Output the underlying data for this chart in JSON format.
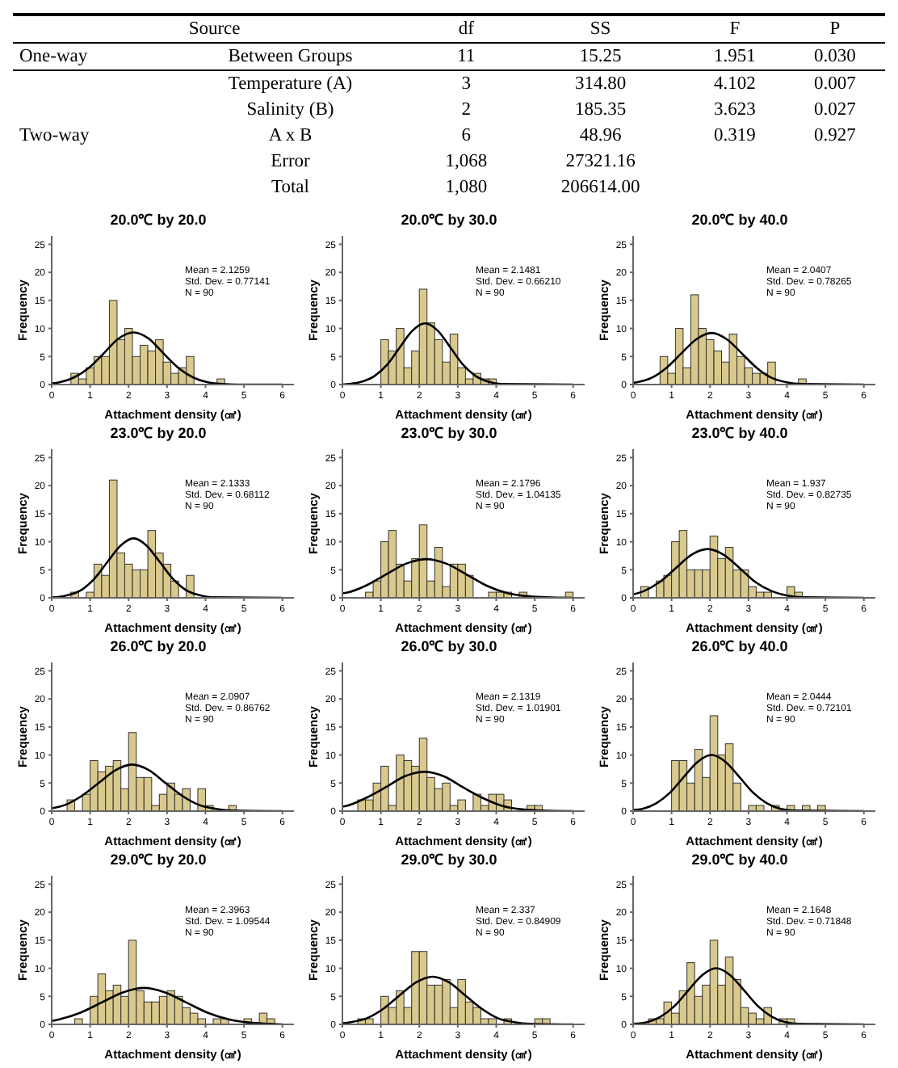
{
  "chart_data": [
    {
      "type": "other",
      "categories": [
        "Source",
        "df",
        "SS",
        "F",
        "P"
      ],
      "cell_labels": [
        [
          "One-way",
          "Between Groups",
          "11",
          "15.25",
          "1.951",
          "0.030"
        ],
        [
          null,
          "Temperature (A)",
          "3",
          "314.80",
          "4.102",
          "0.007"
        ],
        [
          null,
          "Salinity (B)",
          "2",
          "185.35",
          "3.623",
          "0.027"
        ],
        [
          "Two-way",
          "A x B",
          "6",
          "48.96",
          "0.319",
          "0.927"
        ],
        [
          null,
          "Error",
          "1,068",
          "27321.16",
          null,
          null
        ],
        [
          null,
          "Total",
          "1,080",
          "206614.00",
          null,
          null
        ]
      ]
    },
    {
      "type": "histogram",
      "title": "20.0℃ by 20.0",
      "xlabel": "Attachment density (㎠)",
      "ylabel": "Frequency",
      "xlim": [
        0,
        6.3
      ],
      "xticks": [
        0,
        1,
        2,
        3,
        4,
        5,
        6
      ],
      "ylim": [
        0,
        26.5
      ],
      "yticks": [
        0,
        5,
        10,
        15,
        20,
        25
      ],
      "annotations": [
        "Mean = 2.1259",
        "Std. Dev. = 0.77141",
        "N = 90"
      ],
      "series": [
        {
          "type": "histogram",
          "color": "#d9c98c",
          "bins": [
            0.5,
            0.7,
            0.9,
            1.1,
            1.3,
            1.5,
            1.7,
            1.9,
            2.1,
            2.3,
            2.5,
            2.7,
            2.9,
            3.1,
            3.3,
            3.5,
            3.7,
            3.9,
            4.1,
            4.3,
            4.5
          ],
          "values": [
            2,
            1,
            3,
            5,
            5,
            15,
            8,
            10,
            5,
            7,
            6,
            8,
            4,
            2,
            3,
            5,
            0,
            0,
            0,
            1
          ]
        },
        {
          "type": "line",
          "color": "#000000",
          "x": [
            0,
            0.2,
            0.59,
            0.97,
            1.36,
            1.74,
            2.13,
            2.52,
            2.9,
            3.29,
            3.67,
            4.06,
            4.44,
            4.83,
            6
          ],
          "values": [
            0.2,
            0.4,
            1.3,
            3,
            5.6,
            8.2,
            9.3,
            8.2,
            5.6,
            3,
            1.3,
            0.4,
            0.1,
            0,
            0
          ]
        }
      ]
    },
    {
      "type": "histogram",
      "title": "20.0℃ by 30.0",
      "xlabel": "Attachment density (㎠)",
      "ylabel": "Frequency",
      "xlim": [
        0,
        6.3
      ],
      "xticks": [
        0,
        1,
        2,
        3,
        4,
        5,
        6
      ],
      "ylim": [
        0,
        26.5
      ],
      "yticks": [
        0,
        5,
        10,
        15,
        20,
        25
      ],
      "annotations": [
        "Mean = 2.1481",
        "Std. Dev. = 0.66210",
        "N = 90"
      ],
      "series": [
        {
          "type": "histogram",
          "color": "#d9c98c",
          "bins": [
            1.0,
            1.2,
            1.4,
            1.6,
            1.8,
            2.0,
            2.2,
            2.4,
            2.6,
            2.8,
            3.0,
            3.2,
            3.4,
            3.6,
            3.8,
            4.0
          ],
          "values": [
            8,
            6,
            10,
            3,
            6,
            17,
            11,
            8,
            4,
            9,
            3,
            1,
            2,
            1,
            1
          ]
        },
        {
          "type": "line",
          "color": "#000000",
          "x": [
            0,
            0.17,
            0.5,
            0.83,
            1.16,
            1.49,
            1.82,
            2.15,
            2.48,
            2.81,
            3.14,
            3.47,
            3.8,
            4.13,
            6
          ],
          "values": [
            0,
            0.1,
            0.5,
            1.5,
            3.5,
            6.6,
            9.6,
            10.9,
            9.6,
            6.6,
            3.5,
            1.5,
            0.5,
            0.1,
            0
          ]
        }
      ]
    },
    {
      "type": "histogram",
      "title": "20.0℃ by 40.0",
      "xlabel": "Attachment density (㎠)",
      "ylabel": "Frequency",
      "xlim": [
        0,
        6.3
      ],
      "xticks": [
        0,
        1,
        2,
        3,
        4,
        5,
        6
      ],
      "ylim": [
        0,
        26.5
      ],
      "yticks": [
        0,
        5,
        10,
        15,
        20,
        25
      ],
      "annotations": [
        "Mean = 2.0407",
        "Std. Dev. = 0.78265",
        "N = 90"
      ],
      "series": [
        {
          "type": "histogram",
          "color": "#d9c98c",
          "bins": [
            0.7,
            0.9,
            1.1,
            1.3,
            1.5,
            1.7,
            1.9,
            2.1,
            2.3,
            2.5,
            2.7,
            2.9,
            3.1,
            3.3,
            3.5,
            3.7,
            3.9,
            4.1,
            4.3,
            4.5
          ],
          "values": [
            5,
            2,
            10,
            3,
            16,
            10,
            8,
            6,
            4,
            9,
            5,
            3,
            2,
            2,
            4,
            0,
            0,
            0,
            1
          ]
        },
        {
          "type": "line",
          "color": "#000000",
          "x": [
            0,
            0.09,
            0.48,
            0.87,
            1.26,
            1.65,
            2.04,
            2.43,
            2.82,
            3.21,
            3.6,
            3.99,
            4.38,
            6
          ],
          "values": [
            0.3,
            0.4,
            1.2,
            3,
            5.6,
            8.1,
            9.2,
            8.1,
            5.6,
            3,
            1.2,
            0.4,
            0.1,
            0
          ]
        }
      ]
    },
    {
      "type": "histogram",
      "title": "23.0℃ by 20.0",
      "xlabel": "Attachment density (㎠)",
      "ylabel": "Frequency",
      "xlim": [
        0,
        6.3
      ],
      "xticks": [
        0,
        1,
        2,
        3,
        4,
        5,
        6
      ],
      "ylim": [
        0,
        26.5
      ],
      "yticks": [
        0,
        5,
        10,
        15,
        20,
        25
      ],
      "annotations": [
        "Mean = 2.1333",
        "Std. Dev. = 0.68112",
        "N = 90"
      ],
      "series": [
        {
          "type": "histogram",
          "color": "#d9c98c",
          "bins": [
            0.5,
            0.7,
            0.9,
            1.1,
            1.3,
            1.5,
            1.7,
            1.9,
            2.1,
            2.3,
            2.5,
            2.7,
            2.9,
            3.1,
            3.3,
            3.5,
            3.7
          ],
          "values": [
            1,
            0,
            1,
            6,
            4,
            21,
            8,
            6,
            5,
            5,
            12,
            8,
            6,
            3,
            0,
            4
          ]
        },
        {
          "type": "line",
          "color": "#000000",
          "x": [
            0,
            0.09,
            0.43,
            0.77,
            1.11,
            1.45,
            1.79,
            2.13,
            2.47,
            2.81,
            3.15,
            3.49,
            3.83,
            4.17,
            6
          ],
          "values": [
            0.1,
            0.1,
            0.5,
            1.4,
            3.4,
            6.4,
            9.3,
            10.6,
            9.3,
            6.4,
            3.4,
            1.4,
            0.5,
            0.1,
            0
          ]
        }
      ]
    },
    {
      "type": "histogram",
      "title": "23.0℃ by 30.0",
      "xlabel": "Attachment density (㎠)",
      "ylabel": "Frequency",
      "xlim": [
        0,
        6.3
      ],
      "xticks": [
        0,
        1,
        2,
        3,
        4,
        5,
        6
      ],
      "ylim": [
        0,
        26.5
      ],
      "yticks": [
        0,
        5,
        10,
        15,
        20,
        25
      ],
      "annotations": [
        "Mean = 2.1796",
        "Std. Dev. = 1.04135",
        "N = 90"
      ],
      "series": [
        {
          "type": "histogram",
          "color": "#d9c98c",
          "bins": [
            0.6,
            0.8,
            1.0,
            1.2,
            1.4,
            1.6,
            1.8,
            2.0,
            2.2,
            2.4,
            2.6,
            2.8,
            3.0,
            3.2,
            3.4,
            3.6,
            3.8,
            4.0,
            4.2,
            4.4,
            4.6,
            4.8,
            5.0,
            5.2,
            5.4,
            5.6,
            5.8,
            6.0
          ],
          "values": [
            1,
            3,
            10,
            12,
            6,
            3,
            7,
            13,
            3,
            9,
            2,
            6,
            6,
            4,
            0,
            0,
            1,
            1,
            1,
            0,
            1,
            0,
            0,
            0,
            0,
            0,
            1
          ]
        },
        {
          "type": "line",
          "color": "#000000",
          "x": [
            0,
            0.1,
            0.62,
            1.14,
            1.66,
            2.18,
            2.7,
            3.22,
            3.74,
            4.26,
            4.78,
            5.3,
            6
          ],
          "values": [
            0.8,
            0.9,
            2.2,
            4.2,
            6.1,
            6.9,
            6.1,
            4.2,
            2.2,
            0.9,
            0.3,
            0.1,
            0
          ]
        }
      ]
    },
    {
      "type": "histogram",
      "title": "23.0℃ by 40.0",
      "xlabel": "Attachment density (㎠)",
      "ylabel": "Frequency",
      "xlim": [
        0,
        6.3
      ],
      "xticks": [
        0,
        1,
        2,
        3,
        4,
        5,
        6
      ],
      "ylim": [
        0,
        26.5
      ],
      "yticks": [
        0,
        5,
        10,
        15,
        20,
        25
      ],
      "annotations": [
        "Mean = 1.937",
        "Std. Dev. = 0.82735",
        "N = 90"
      ],
      "series": [
        {
          "type": "histogram",
          "color": "#d9c98c",
          "bins": [
            0.2,
            0.4,
            0.6,
            0.8,
            1.0,
            1.2,
            1.4,
            1.6,
            1.8,
            2.0,
            2.2,
            2.4,
            2.6,
            2.8,
            3.0,
            3.2,
            3.4,
            3.6,
            3.8,
            4.0,
            4.2,
            4.4
          ],
          "values": [
            2,
            0,
            3,
            4,
            10,
            12,
            5,
            5,
            5,
            11,
            7,
            9,
            5,
            5,
            2,
            1,
            1,
            0,
            0,
            2,
            1
          ]
        },
        {
          "type": "line",
          "color": "#000000",
          "x": [
            0,
            0.28,
            0.69,
            1.11,
            1.52,
            1.94,
            2.35,
            2.77,
            3.18,
            3.6,
            4.01,
            4.43,
            6
          ],
          "values": [
            0.6,
            1.2,
            2.8,
            5.3,
            7.7,
            8.7,
            7.7,
            5.3,
            2.8,
            1.2,
            0.4,
            0.1,
            0
          ]
        }
      ]
    },
    {
      "type": "histogram",
      "title": "26.0℃ by 20.0",
      "xlabel": "Attachment density (㎠)",
      "ylabel": "Frequency",
      "xlim": [
        0,
        6.3
      ],
      "xticks": [
        0,
        1,
        2,
        3,
        4,
        5,
        6
      ],
      "ylim": [
        0,
        26.5
      ],
      "yticks": [
        0,
        5,
        10,
        15,
        20,
        25
      ],
      "annotations": [
        "Mean = 2.0907",
        "Std. Dev. = 0.86762",
        "N = 90"
      ],
      "series": [
        {
          "type": "histogram",
          "color": "#d9c98c",
          "bins": [
            0.4,
            0.6,
            0.8,
            1.0,
            1.2,
            1.4,
            1.6,
            1.8,
            2.0,
            2.2,
            2.4,
            2.6,
            2.8,
            3.0,
            3.2,
            3.4,
            3.6,
            3.8,
            4.0,
            4.2,
            4.4,
            4.6,
            4.8
          ],
          "values": [
            2,
            0,
            3,
            9,
            7,
            8,
            9,
            4,
            14,
            6,
            6,
            1,
            3,
            5,
            3,
            4,
            0,
            4,
            1,
            0,
            0,
            1
          ]
        },
        {
          "type": "line",
          "color": "#000000",
          "x": [
            0,
            0.35,
            0.78,
            1.22,
            1.66,
            2.09,
            2.53,
            2.96,
            3.4,
            3.83,
            4.27,
            4.7,
            6
          ],
          "values": [
            0.5,
            1.1,
            2.7,
            5,
            7.3,
            8.3,
            7.3,
            5,
            2.7,
            1.1,
            0.4,
            0.1,
            0
          ]
        }
      ]
    },
    {
      "type": "histogram",
      "title": "26.0℃ by 30.0",
      "xlabel": "Attachment density (㎠)",
      "ylabel": "Frequency",
      "xlim": [
        0,
        6.3
      ],
      "xticks": [
        0,
        1,
        2,
        3,
        4,
        5,
        6
      ],
      "ylim": [
        0,
        26.5
      ],
      "yticks": [
        0,
        5,
        10,
        15,
        20,
        25
      ],
      "annotations": [
        "Mean = 2.1319",
        "Std. Dev. = 1.01901",
        "N = 90"
      ],
      "series": [
        {
          "type": "histogram",
          "color": "#d9c98c",
          "bins": [
            0.4,
            0.6,
            0.8,
            1.0,
            1.2,
            1.4,
            1.6,
            1.8,
            2.0,
            2.2,
            2.4,
            2.6,
            2.8,
            3.0,
            3.2,
            3.4,
            3.6,
            3.8,
            4.0,
            4.2,
            4.4,
            4.6,
            4.8,
            5.0,
            5.2
          ],
          "values": [
            2,
            2,
            5,
            8,
            1,
            10,
            9,
            8,
            13,
            6,
            4,
            5,
            1,
            2,
            0,
            3,
            1,
            3,
            3,
            2,
            0,
            0,
            1,
            1
          ]
        },
        {
          "type": "line",
          "color": "#000000",
          "x": [
            0,
            0.09,
            0.6,
            1.11,
            1.62,
            2.13,
            2.64,
            3.15,
            3.66,
            4.17,
            4.68,
            5.19,
            6
          ],
          "values": [
            0.8,
            0.9,
            2.3,
            4.2,
            6.2,
            7,
            6.2,
            4.2,
            2.3,
            0.9,
            0.3,
            0.1,
            0
          ]
        }
      ]
    },
    {
      "type": "histogram",
      "title": "26.0℃ by 40.0",
      "xlabel": "Attachment density (㎠)",
      "ylabel": "Frequency",
      "xlim": [
        0,
        6.3
      ],
      "xticks": [
        0,
        1,
        2,
        3,
        4,
        5,
        6
      ],
      "ylim": [
        0,
        26.5
      ],
      "yticks": [
        0,
        5,
        10,
        15,
        20,
        25
      ],
      "annotations": [
        "Mean = 2.0444",
        "Std. Dev. = 0.72101",
        "N = 90"
      ],
      "series": [
        {
          "type": "histogram",
          "color": "#d9c98c",
          "bins": [
            1.0,
            1.2,
            1.4,
            1.6,
            1.8,
            2.0,
            2.2,
            2.4,
            2.6,
            2.8,
            3.0,
            3.2,
            3.4,
            3.6,
            3.8,
            4.0,
            4.2,
            4.4,
            4.6,
            4.8,
            5.0
          ],
          "values": [
            9,
            9,
            5,
            11,
            6,
            17,
            10,
            12,
            5,
            0,
            1,
            1,
            0,
            1,
            0,
            1,
            0,
            1,
            0,
            1
          ]
        },
        {
          "type": "line",
          "color": "#000000",
          "x": [
            0,
            0.24,
            0.6,
            0.96,
            1.32,
            1.68,
            2.04,
            2.4,
            2.76,
            3.12,
            3.48,
            3.84,
            4.2,
            6
          ],
          "values": [
            0.2,
            0.4,
            1.4,
            3.3,
            6.1,
            8.8,
            10,
            8.8,
            6.1,
            3.3,
            1.4,
            0.4,
            0.1,
            0
          ]
        }
      ]
    },
    {
      "type": "histogram",
      "title": "29.0℃ by 20.0",
      "xlabel": "Attachment density (㎠)",
      "ylabel": "Frequency",
      "xlim": [
        0,
        6.3
      ],
      "xticks": [
        0,
        1,
        2,
        3,
        4,
        5,
        6
      ],
      "ylim": [
        0,
        26.5
      ],
      "yticks": [
        0,
        5,
        10,
        15,
        20,
        25
      ],
      "annotations": [
        "Mean = 2.3963",
        "Std. Dev. = 1.09544",
        "N = 90"
      ],
      "series": [
        {
          "type": "histogram",
          "color": "#d9c98c",
          "bins": [
            0.6,
            0.8,
            1.0,
            1.2,
            1.4,
            1.6,
            1.8,
            2.0,
            2.2,
            2.4,
            2.6,
            2.8,
            3.0,
            3.2,
            3.4,
            3.6,
            3.8,
            4.0,
            4.2,
            4.4,
            4.6,
            4.8,
            5.0,
            5.2,
            5.4,
            5.6,
            5.8
          ],
          "values": [
            1,
            0,
            5,
            9,
            6,
            7,
            5,
            15,
            6,
            4,
            4,
            5,
            6,
            5,
            3,
            2,
            1,
            0,
            1,
            1,
            0,
            0,
            1,
            0,
            2,
            1
          ]
        },
        {
          "type": "line",
          "color": "#000000",
          "x": [
            0,
            0.2,
            0.75,
            1.3,
            1.85,
            2.4,
            2.95,
            3.5,
            4.05,
            4.6,
            5.15,
            5.7,
            6
          ],
          "values": [
            0.6,
            0.9,
            2.1,
            3.9,
            5.7,
            6.5,
            5.7,
            3.9,
            2.1,
            0.9,
            0.3,
            0.1,
            0
          ]
        }
      ]
    },
    {
      "type": "histogram",
      "title": "29.0℃ by 30.0",
      "xlabel": "Attachment density (㎠)",
      "ylabel": "Frequency",
      "xlim": [
        0,
        6.3
      ],
      "xticks": [
        0,
        1,
        2,
        3,
        4,
        5,
        6
      ],
      "ylim": [
        0,
        26.5
      ],
      "yticks": [
        0,
        5,
        10,
        15,
        20,
        25
      ],
      "annotations": [
        "Mean = 2.337",
        "Std. Dev. = 0.84909",
        "N = 90"
      ],
      "series": [
        {
          "type": "histogram",
          "color": "#d9c98c",
          "bins": [
            0.4,
            0.6,
            0.8,
            1.0,
            1.2,
            1.4,
            1.6,
            1.8,
            2.0,
            2.2,
            2.4,
            2.6,
            2.8,
            3.0,
            3.2,
            3.4,
            3.6,
            3.8,
            4.0,
            4.2,
            4.4,
            4.6,
            4.8,
            5.0,
            5.2,
            5.4
          ],
          "values": [
            1,
            1,
            0,
            5,
            3,
            6,
            3,
            13,
            13,
            7,
            7,
            8,
            3,
            8,
            4,
            3,
            1,
            1,
            0,
            1,
            0,
            0,
            0,
            1,
            1
          ]
        },
        {
          "type": "line",
          "color": "#000000",
          "x": [
            0,
            0.22,
            0.64,
            1.07,
            1.49,
            1.92,
            2.34,
            2.77,
            3.19,
            3.62,
            4.04,
            4.47,
            4.89,
            6
          ],
          "values": [
            0.2,
            0.4,
            1.1,
            2.8,
            5.2,
            7.5,
            8.5,
            7.5,
            5.2,
            2.8,
            1.1,
            0.4,
            0.1,
            0
          ]
        }
      ]
    },
    {
      "type": "histogram",
      "title": "29.0℃ by 40.0",
      "xlabel": "Attachment density (㎠)",
      "ylabel": "Frequency",
      "xlim": [
        0,
        6.3
      ],
      "xticks": [
        0,
        1,
        2,
        3,
        4,
        5,
        6
      ],
      "ylim": [
        0,
        26.5
      ],
      "yticks": [
        0,
        5,
        10,
        15,
        20,
        25
      ],
      "annotations": [
        "Mean = 2.1648",
        "Std. Dev. = 0.71848",
        "N = 90"
      ],
      "series": [
        {
          "type": "histogram",
          "color": "#d9c98c",
          "bins": [
            0.4,
            0.6,
            0.8,
            1.0,
            1.2,
            1.4,
            1.6,
            1.8,
            2.0,
            2.2,
            2.4,
            2.6,
            2.8,
            3.0,
            3.2,
            3.4,
            3.6,
            3.8,
            4.0,
            4.2
          ],
          "values": [
            1,
            1,
            4,
            2,
            6,
            11,
            5,
            7,
            15,
            7,
            12,
            8,
            3,
            2,
            1,
            3,
            0,
            1,
            1
          ]
        },
        {
          "type": "line",
          "color": "#000000",
          "x": [
            0,
            0.36,
            0.72,
            1.08,
            1.44,
            1.8,
            2.16,
            2.52,
            2.88,
            3.24,
            3.6,
            3.96,
            4.32,
            6
          ],
          "values": [
            0.1,
            0.4,
            1.4,
            3.3,
            6.1,
            8.8,
            10,
            8.8,
            6.1,
            3.3,
            1.4,
            0.4,
            0.1,
            0
          ]
        }
      ]
    }
  ]
}
